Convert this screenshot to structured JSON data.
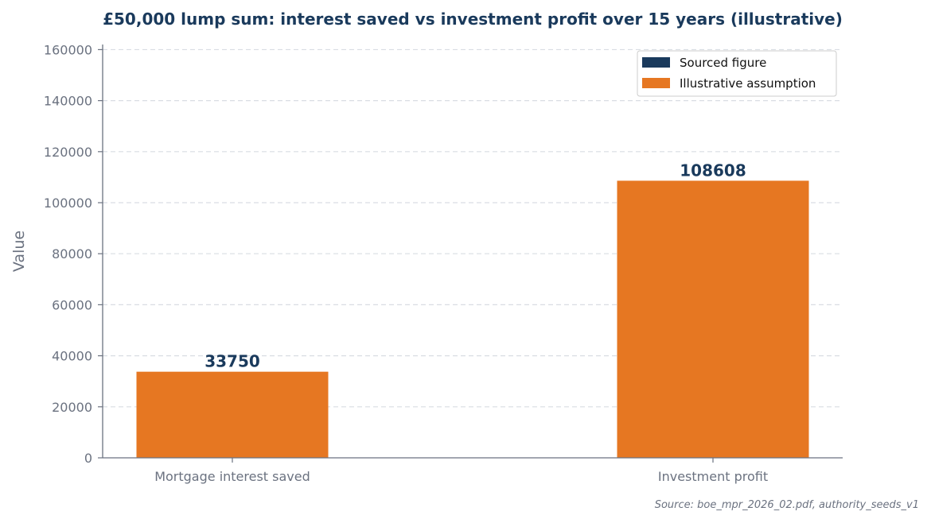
{
  "chart_data": {
    "type": "bar",
    "title": "£50,000 lump sum: interest saved vs investment profit over 15 years (illustrative)",
    "xlabel": "",
    "ylabel": "Value",
    "categories": [
      "Mortgage interest saved",
      "Investment profit"
    ],
    "values": [
      33750,
      108608
    ],
    "data_labels": [
      "33750",
      "108608"
    ],
    "bar_legend_series": [
      "Illustrative assumption",
      "Illustrative assumption"
    ],
    "ylim": [
      0,
      162000
    ],
    "yticks": [
      0,
      20000,
      40000,
      60000,
      80000,
      100000,
      120000,
      140000,
      160000
    ],
    "ytick_labels": [
      "0",
      "20000",
      "40000",
      "60000",
      "80000",
      "100000",
      "120000",
      "140000",
      "160000"
    ],
    "grid": "horizontal dashed",
    "legend_position": "top-right",
    "legend": [
      {
        "name": "Sourced figure",
        "color": "#1a3a5c"
      },
      {
        "name": "Illustrative assumption",
        "color": "#e67722"
      }
    ],
    "source_note": "Source: boe_mpr_2026_02.pdf, authority_seeds_v1"
  },
  "colors": {
    "title": "#1a3a5c",
    "bar": "#e67722",
    "axis": "#6b7280",
    "grid": "#d9dde3"
  }
}
